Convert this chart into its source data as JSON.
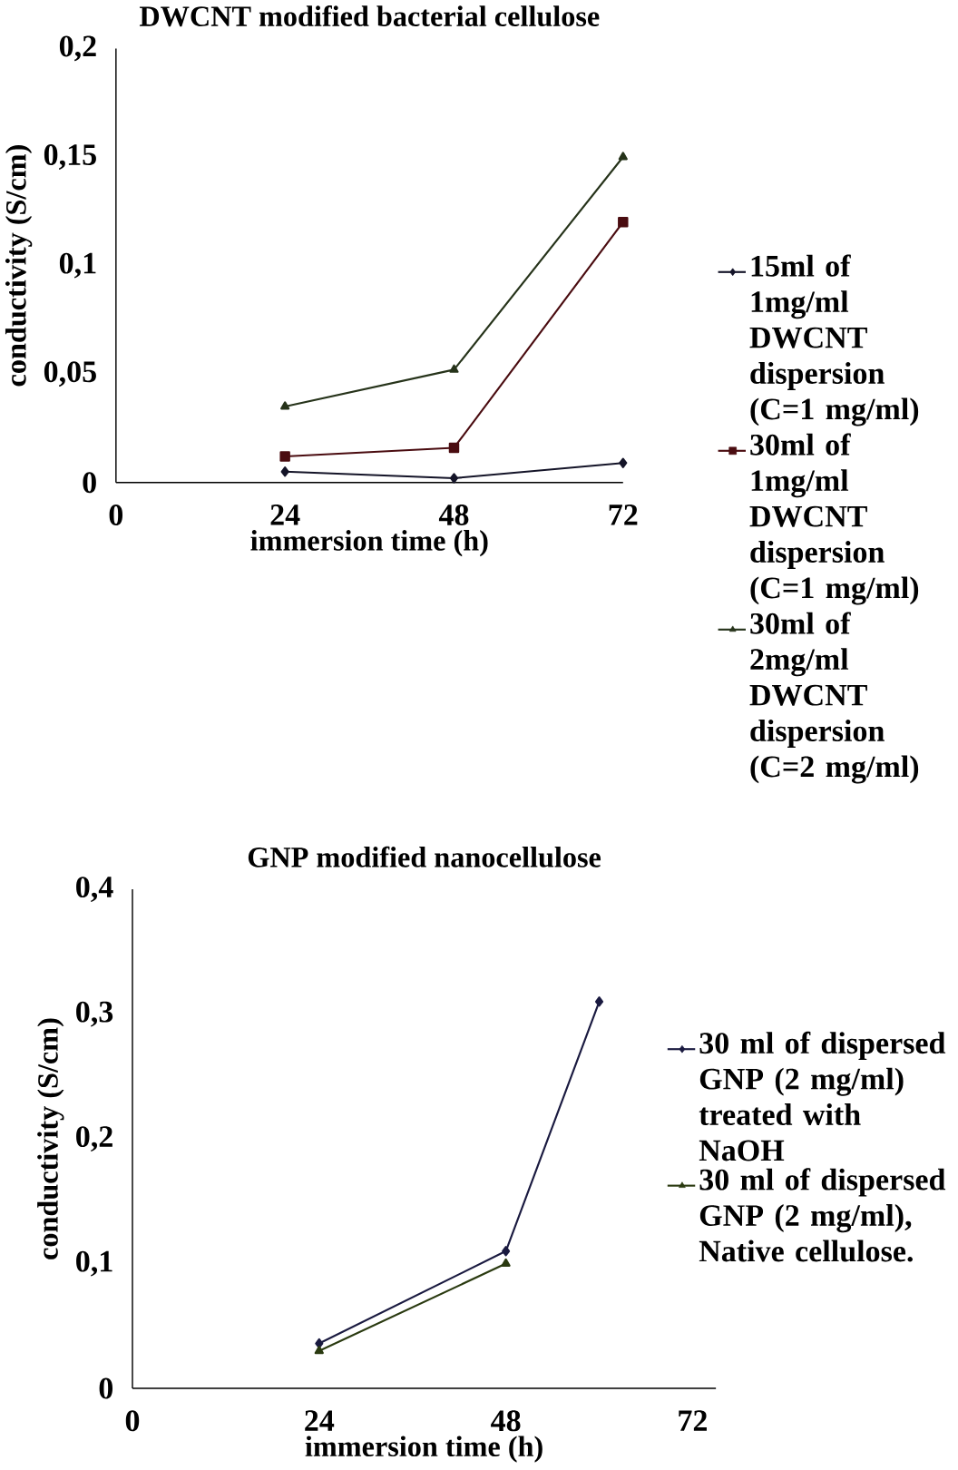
{
  "chart_data": [
    {
      "type": "line",
      "title": "DWCNT modified bacterial cellulose",
      "xlabel": "immersion time (h)",
      "ylabel": "conductivity (S/cm)",
      "x": [
        24,
        48,
        72
      ],
      "xlim": [
        0,
        72
      ],
      "xticks": [
        0,
        24,
        48,
        72
      ],
      "ylim": [
        0,
        0.2
      ],
      "yticks": [
        0,
        {
          "value": 0.05,
          "label": "0,05"
        },
        {
          "value": 0.1,
          "label": "0,1"
        },
        {
          "value": 0.15,
          "label": "0,15"
        },
        {
          "value": 0.2,
          "label": "0,2"
        }
      ],
      "legend": "right",
      "grid": false,
      "series": [
        {
          "name": "15ml of 1mg/ml DWCNT dispersion (C=1 mg/ml)",
          "color": "#141428",
          "marker": "diamond",
          "values": [
            0.005,
            0.002,
            0.009
          ]
        },
        {
          "name": "30ml of 1mg/ml DWCNT dispersion (C=1 mg/ml)",
          "color": "#4a0c10",
          "marker": "square",
          "values": [
            0.012,
            0.016,
            0.12
          ]
        },
        {
          "name": "30ml of 2mg/ml DWCNT dispersion (C=2 mg/ml)",
          "color": "#26331a",
          "marker": "triangle",
          "values": [
            0.035,
            0.052,
            0.15
          ]
        }
      ]
    },
    {
      "type": "line",
      "title": "GNP modified nanocellulose",
      "xlabel": "immersion time (h)",
      "ylabel": "conductivity (S/cm)",
      "xlim": [
        0,
        75
      ],
      "xticks": [
        0,
        24,
        48,
        72
      ],
      "ylim": [
        0,
        0.4
      ],
      "yticks": [
        0,
        {
          "value": 0.1,
          "label": "0,1"
        },
        {
          "value": 0.2,
          "label": "0,2"
        },
        {
          "value": 0.3,
          "label": "0,3"
        },
        {
          "value": 0.4,
          "label": "0,4"
        }
      ],
      "legend": "right",
      "grid": false,
      "series": [
        {
          "name": "30 ml of dispersed GNP (2 mg/ml) treated with NaOH",
          "color": "#1a1a40",
          "marker": "diamond",
          "x": [
            24,
            48,
            60
          ],
          "values": [
            0.036,
            0.11,
            0.31
          ]
        },
        {
          "name": "30 ml of dispersed GNP (2 mg/ml), Native cellulose.",
          "color": "#2a3a10",
          "marker": "triangle",
          "x": [
            24,
            48
          ],
          "values": [
            0.03,
            0.1
          ]
        }
      ]
    }
  ]
}
